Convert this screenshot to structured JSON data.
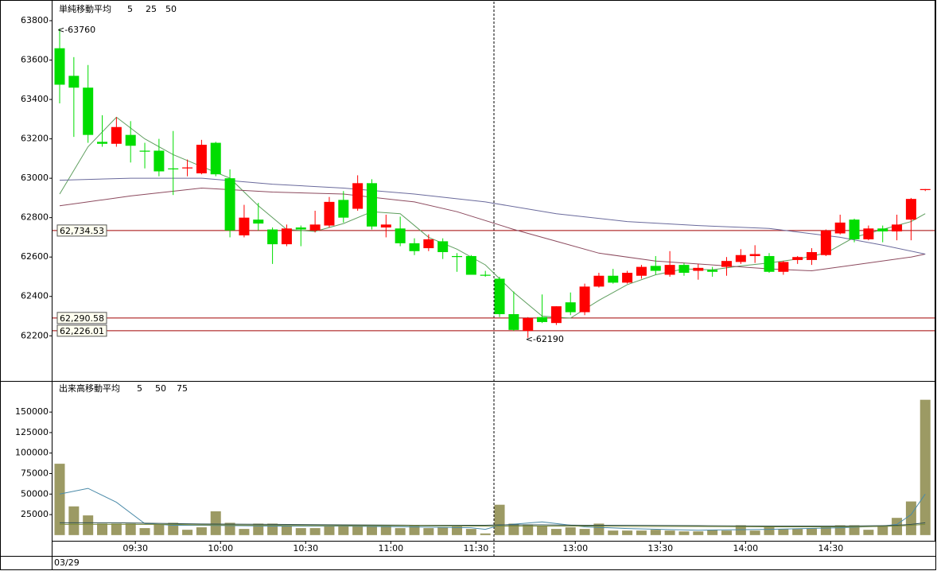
{
  "chart_data": [
    {
      "type": "candlestick",
      "title": "単純移動平均",
      "title_color": "#8a7a5a",
      "up_color": "#ff0000",
      "down_color": "#00dd00",
      "open": [
        63660,
        63520,
        63460,
        63185,
        63175,
        63220,
        63140,
        63140,
        63050,
        63050,
        63025,
        63180,
        63000,
        62710,
        62790,
        62740,
        62665,
        62750,
        62735,
        62760,
        62890,
        62845,
        62975,
        62750,
        62745,
        62670,
        62645,
        62680,
        62605,
        62605,
        62510,
        62490,
        62310,
        62225,
        62295,
        62265,
        62370,
        62320,
        62450,
        62505,
        62470,
        62505,
        62555,
        62510,
        62560,
        62530,
        62535,
        62550,
        62575,
        62605,
        62605,
        62525,
        62585,
        62585,
        62610,
        62720,
        62790,
        62690,
        62745,
        62730,
        62790,
        62940
      ],
      "high": [
        63760,
        63615,
        63575,
        63320,
        63310,
        63290,
        63180,
        63200,
        63240,
        63095,
        63195,
        63185,
        63045,
        62865,
        62875,
        62750,
        62765,
        62760,
        62835,
        62905,
        62935,
        63015,
        62995,
        62815,
        62805,
        62695,
        62715,
        62695,
        62620,
        62610,
        62530,
        62500,
        62425,
        62295,
        62410,
        62350,
        62420,
        62465,
        62520,
        62540,
        62530,
        62560,
        62605,
        62630,
        62570,
        62565,
        62550,
        62600,
        62640,
        62660,
        62620,
        62580,
        62605,
        62645,
        62740,
        62815,
        62795,
        62760,
        62760,
        62815,
        62900,
        62945
      ],
      "low": [
        63380,
        63210,
        63180,
        63160,
        63160,
        63080,
        63050,
        63010,
        62915,
        63010,
        63020,
        63010,
        62700,
        62700,
        62735,
        62565,
        62655,
        62655,
        62725,
        62750,
        62775,
        62835,
        62740,
        62700,
        62655,
        62610,
        62630,
        62590,
        62525,
        62510,
        62500,
        62295,
        62225,
        62190,
        62265,
        62255,
        62305,
        62305,
        62445,
        62465,
        62465,
        62490,
        62510,
        62500,
        62505,
        62485,
        62500,
        62505,
        62565,
        62570,
        62520,
        62510,
        62565,
        62560,
        62605,
        62715,
        62675,
        62685,
        62675,
        62685,
        62685,
        62935
      ],
      "close": [
        63475,
        63460,
        63220,
        63175,
        63260,
        63165,
        63135,
        63035,
        63045,
        63055,
        63170,
        63020,
        62735,
        62800,
        62770,
        62665,
        62745,
        62740,
        62765,
        62880,
        62800,
        62975,
        62755,
        62765,
        62670,
        62630,
        62690,
        62625,
        62600,
        62510,
        62505,
        62310,
        62230,
        62290,
        62270,
        62350,
        62320,
        62450,
        62505,
        62470,
        62520,
        62550,
        62530,
        62560,
        62520,
        62545,
        62525,
        62580,
        62610,
        62615,
        62525,
        62575,
        62600,
        62625,
        62735,
        62775,
        62690,
        62745,
        62730,
        62765,
        62895,
        62945
      ],
      "series": [
        {
          "name": "5",
          "color": "#5e9e5e",
          "x": [
            0,
            2,
            4,
            6,
            8,
            10,
            12,
            14,
            16,
            18,
            20,
            22,
            24,
            26,
            28,
            30,
            32,
            34,
            36,
            38,
            40,
            42,
            44,
            46,
            48,
            50,
            52,
            54,
            56,
            58,
            60,
            61
          ],
          "values": [
            62920,
            63160,
            63310,
            63200,
            63120,
            63060,
            63000,
            62860,
            62740,
            62730,
            62770,
            62830,
            62820,
            62700,
            62640,
            62560,
            62420,
            62300,
            62290,
            62380,
            62460,
            62510,
            62540,
            62535,
            62555,
            62570,
            62590,
            62620,
            62700,
            62740,
            62780,
            62820
          ]
        },
        {
          "name": "25",
          "color": "#8c4a5e",
          "x": [
            0,
            5,
            10,
            15,
            20,
            25,
            28,
            32,
            35,
            38,
            42,
            46,
            50,
            53,
            56,
            60,
            61
          ],
          "values": [
            62860,
            62910,
            62950,
            62930,
            62920,
            62880,
            62830,
            62740,
            62680,
            62620,
            62580,
            62560,
            62540,
            62530,
            62560,
            62600,
            62615
          ]
        },
        {
          "name": "50",
          "color": "#6a6a9c",
          "x": [
            0,
            5,
            10,
            15,
            20,
            25,
            30,
            35,
            40,
            45,
            50,
            55,
            58,
            61
          ],
          "values": [
            62990,
            63000,
            63000,
            62970,
            62950,
            62920,
            62880,
            62820,
            62780,
            62760,
            62745,
            62700,
            62660,
            62615
          ]
        }
      ],
      "hlines": [
        {
          "value": 62734.53,
          "label": "62,734.53",
          "color": "#a00000",
          "label_color": "#208080"
        },
        {
          "value": 62290.58,
          "label": "62,290.58",
          "color": "#a00000",
          "label_color": "#b08000"
        },
        {
          "value": 62226.01,
          "label": "62,226.01",
          "color": "#a00000",
          "label_color": "#b08000"
        }
      ],
      "annotations": [
        {
          "index": 0,
          "value": 63760,
          "label": "<-63760",
          "color": "#cc0000"
        },
        {
          "index": 33,
          "value": 62190,
          "label": "<-62190",
          "color": "#009900"
        }
      ],
      "ylim": [
        61975,
        63905
      ],
      "yticks": [
        62200,
        62400,
        62600,
        62800,
        63000,
        63200,
        63400,
        63600,
        63800
      ]
    },
    {
      "type": "bar",
      "title": "出来高移動平均",
      "title_color": "#5a8a8a",
      "color": "#9c9a64",
      "categories": [
        null,
        null,
        null,
        null,
        null,
        "09:30",
        null,
        null,
        null,
        null,
        null,
        "10:00",
        null,
        null,
        null,
        null,
        null,
        "10:30",
        null,
        null,
        null,
        null,
        null,
        "11:00",
        null,
        null,
        null,
        null,
        null,
        "11:30",
        null,
        null,
        null,
        null,
        null,
        null,
        "13:00",
        null,
        null,
        null,
        null,
        null,
        "13:30",
        null,
        null,
        null,
        null,
        null,
        "14:00",
        null,
        null,
        null,
        null,
        null,
        "14:30",
        null,
        null,
        null,
        null,
        null,
        null,
        null
      ],
      "values": [
        87000,
        35000,
        24000,
        14000,
        14000,
        14000,
        8500,
        13000,
        15000,
        6500,
        9500,
        29000,
        15000,
        7500,
        14000,
        14000,
        12000,
        8500,
        8500,
        12000,
        12000,
        11000,
        12000,
        11000,
        8500,
        12000,
        8500,
        9500,
        10500,
        7500,
        2000,
        37000,
        14000,
        13000,
        10500,
        7500,
        9500,
        7500,
        14000,
        5500,
        5500,
        5500,
        6500,
        5500,
        4500,
        4500,
        6500,
        5500,
        12000,
        5500,
        9500,
        7500,
        7500,
        8500,
        10500,
        12000,
        12000,
        6500,
        10500,
        21000,
        41000,
        165000
      ],
      "series": [
        {
          "name": "5",
          "color": "#4a8aa8",
          "x": [
            0,
            2,
            4,
            6,
            8,
            10,
            15,
            20,
            25,
            29,
            30,
            31,
            34,
            37,
            40,
            45,
            50,
            55,
            58,
            59,
            60,
            61
          ],
          "values": [
            50000,
            57000,
            40000,
            14000,
            12000,
            12000,
            11000,
            11000,
            10000,
            9000,
            7000,
            12000,
            16000,
            10000,
            8000,
            6000,
            7000,
            9000,
            11000,
            13000,
            25000,
            50000
          ]
        },
        {
          "name": "50",
          "color": "#2f4f4f",
          "x": [
            0,
            2,
            4,
            6,
            8,
            10,
            15,
            20,
            25,
            29,
            30,
            31,
            34,
            37,
            40,
            45,
            50,
            55,
            58,
            59,
            60,
            61
          ],
          "values": [
            15000,
            15000,
            15000,
            14500,
            14000,
            13500,
            13000,
            12500,
            12000,
            12000,
            12000,
            12500,
            12500,
            12000,
            12000,
            11500,
            11000,
            11000,
            11500,
            12000,
            13000,
            15000
          ]
        },
        {
          "name": "75",
          "color": "#7a8a3a",
          "x": [
            0,
            2,
            4,
            6,
            8,
            10,
            15,
            20,
            25,
            29,
            30,
            31,
            34,
            37,
            40,
            45,
            50,
            55,
            58,
            59,
            60,
            61
          ],
          "values": [
            13000,
            13000,
            13000,
            13000,
            13000,
            12500,
            12000,
            11500,
            11500,
            11000,
            11000,
            11000,
            11000,
            11000,
            10500,
            10500,
            10000,
            10000,
            10500,
            11000,
            12000,
            13000
          ]
        }
      ],
      "ylim": [
        -5000,
        187000
      ],
      "yticks": [
        25000,
        50000,
        75000,
        100000,
        125000,
        150000
      ],
      "date": "03/29"
    }
  ]
}
